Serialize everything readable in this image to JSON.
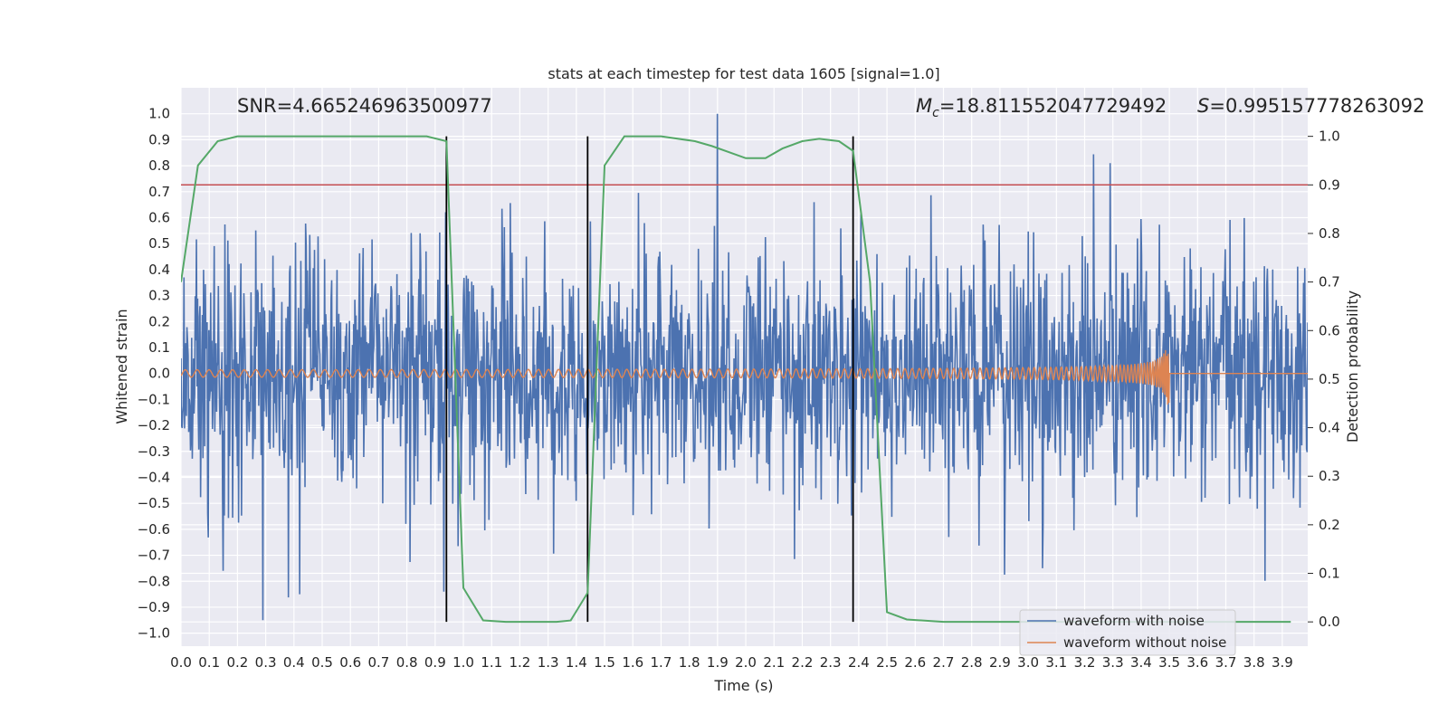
{
  "chart_data": {
    "type": "line",
    "title": "stats at each timestep for test data 1605 [signal=1.0]",
    "xlabel": "Time (s)",
    "ylabel": "Whitened strain",
    "y2label": "Detection probability",
    "xlim": [
      0.0,
      3.99
    ],
    "ylim": [
      -1.05,
      1.1
    ],
    "y2lim": [
      -0.05,
      1.1
    ],
    "x_ticks": [
      0.0,
      0.1,
      0.2,
      0.3,
      0.4,
      0.5,
      0.6,
      0.7,
      0.8,
      0.9,
      1.0,
      1.1,
      1.2,
      1.3,
      1.4,
      1.5,
      1.6,
      1.7,
      1.8,
      1.9,
      2.0,
      2.1,
      2.2,
      2.3,
      2.4,
      2.5,
      2.6,
      2.7,
      2.8,
      2.9,
      3.0,
      3.1,
      3.2,
      3.3,
      3.4,
      3.5,
      3.6,
      3.7,
      3.8,
      3.9
    ],
    "x_tick_labels": [
      "0.0",
      "0.1",
      "0.2",
      "0.3",
      "0.4",
      "0.5",
      "0.6",
      "0.7",
      "0.8",
      "0.9",
      "1.0",
      "1.1",
      "1.2",
      "1.3",
      "1.4",
      "1.5",
      "1.6",
      "1.7",
      "1.8",
      "1.9",
      "2.0",
      "2.1",
      "2.2",
      "2.3",
      "2.4",
      "2.5",
      "2.6",
      "2.7",
      "2.8",
      "2.9",
      "3.0",
      "3.1",
      "3.2",
      "3.3",
      "3.4",
      "3.5",
      "3.6",
      "3.7",
      "3.8",
      "3.9"
    ],
    "y_ticks": [
      1.0,
      0.9,
      0.8,
      0.7,
      0.6,
      0.5,
      0.4,
      0.3,
      0.2,
      0.1,
      0.0,
      -0.1,
      -0.2,
      -0.3,
      -0.4,
      -0.5,
      -0.6,
      -0.7,
      -0.8,
      -0.9,
      -1.0
    ],
    "y_tick_labels": [
      "1.0",
      "0.9",
      "0.8",
      "0.7",
      "0.6",
      "0.5",
      "0.4",
      "0.3",
      "0.2",
      "0.1",
      "0.0",
      "−0.1",
      "−0.2",
      "−0.3",
      "−0.4",
      "−0.5",
      "−0.6",
      "−0.7",
      "−0.8",
      "−0.9",
      "−1.0"
    ],
    "y2_ticks": [
      1.0,
      0.9,
      0.8,
      0.7,
      0.6,
      0.5,
      0.4,
      0.3,
      0.2,
      0.1,
      0.0
    ],
    "y2_tick_labels": [
      "1.0",
      "0.9",
      "0.8",
      "0.7",
      "0.6",
      "0.5",
      "0.4",
      "0.3",
      "0.2",
      "0.1",
      "0.0"
    ],
    "grid": true,
    "legend_placement": "lower-right",
    "series": [
      {
        "name": "waveform with noise",
        "axis": "left",
        "kind": "noise",
        "color": "#4c72b0",
        "x_range": [
          0.0,
          3.99
        ],
        "typical_amplitude": 0.24,
        "extremes": [
          {
            "x": 0.29,
            "y": -0.95
          },
          {
            "x": 0.42,
            "y": -0.85
          },
          {
            "x": 0.93,
            "y": 0.75
          },
          {
            "x": 0.93,
            "y": -0.84
          },
          {
            "x": 1.9,
            "y": 1.0
          },
          {
            "x": 3.29,
            "y": 0.81
          },
          {
            "x": 3.05,
            "y": -0.75
          },
          {
            "x": 0.15,
            "y": -0.76
          }
        ]
      },
      {
        "name": "waveform without noise",
        "axis": "left",
        "kind": "chirp",
        "color": "#dd8452",
        "x_range": [
          0.0,
          3.99
        ],
        "merger_time": 3.5,
        "start_amplitude": 0.01,
        "peak_amplitude": 0.19
      },
      {
        "name": "",
        "axis": "right",
        "kind": "probability",
        "color": "#55a868",
        "x": [
          0.0,
          0.06,
          0.13,
          0.2,
          0.3,
          0.5,
          0.7,
          0.87,
          0.94,
          1.0,
          1.07,
          1.15,
          1.25,
          1.33,
          1.38,
          1.44,
          1.5,
          1.57,
          1.7,
          1.82,
          1.88,
          2.0,
          2.07,
          2.13,
          2.2,
          2.26,
          2.33,
          2.38,
          2.44,
          2.5,
          2.57,
          2.7,
          2.9,
          3.2,
          3.5,
          3.8,
          3.93
        ],
        "y": [
          0.7,
          0.94,
          0.99,
          1.0,
          1.0,
          1.0,
          1.0,
          1.0,
          0.99,
          0.07,
          0.003,
          0.0,
          0.0,
          0.0,
          0.003,
          0.06,
          0.94,
          1.0,
          1.0,
          0.99,
          0.98,
          0.955,
          0.955,
          0.975,
          0.99,
          0.995,
          0.99,
          0.97,
          0.7,
          0.02,
          0.005,
          0.0,
          0.0,
          0.0,
          0.0,
          0.0,
          0.0
        ]
      }
    ],
    "hlines": [
      {
        "y": 0.9,
        "axis": "right",
        "color": "#c44e52"
      }
    ],
    "vlines": [
      {
        "x": 0.94,
        "ymin": 0.0,
        "ymax": 1.0,
        "axis": "right",
        "color": "#000000"
      },
      {
        "x": 1.44,
        "ymin": 0.0,
        "ymax": 1.0,
        "axis": "right",
        "color": "#000000"
      },
      {
        "x": 2.38,
        "ymin": 0.0,
        "ymax": 1.0,
        "axis": "right",
        "color": "#000000"
      }
    ],
    "annotations": {
      "snr": "SNR=4.665246963500977",
      "mc_symbol": "M",
      "mc_sub": "c",
      "mc_value": "=18.811552047729492",
      "s_symbol": "S",
      "s_value": "=0.995157778263092"
    },
    "legend": [
      {
        "label": "waveform with noise",
        "color": "#4c72b0"
      },
      {
        "label": "waveform without noise",
        "color": "#dd8452"
      }
    ],
    "colors": {
      "plot_background": "#eaeaf2",
      "grid": "#ffffff",
      "text": "#262626"
    }
  }
}
